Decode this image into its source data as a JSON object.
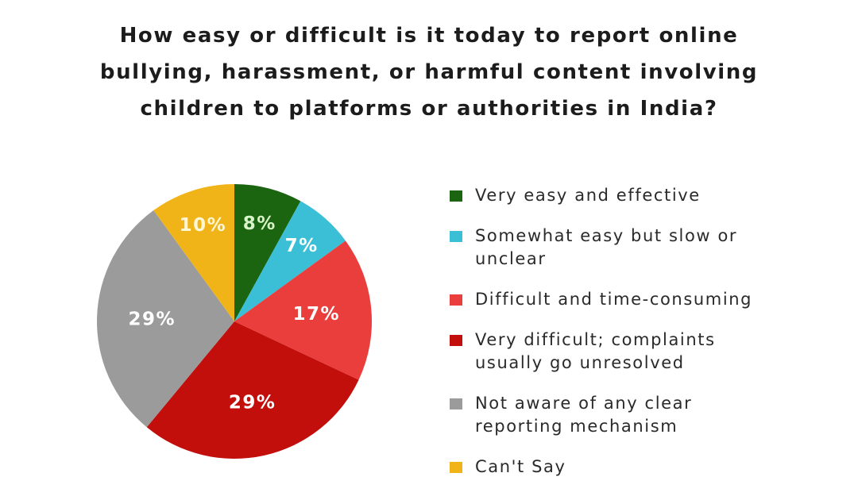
{
  "title": {
    "lines": [
      "How easy or difficult is it today to report online",
      "bullying, harassment, or harmful content involving",
      "children to platforms or authorities in India?"
    ]
  },
  "chart_data": {
    "type": "pie",
    "title": "How easy or difficult is it today to report online bullying, harassment, or harmful content involving children to platforms or authorities in India?",
    "categories": [
      "Very easy and effective",
      "Somewhat easy but slow or unclear",
      "Difficult and time-consuming",
      "Very difficult; complaints usually go unresolved",
      "Not aware of any clear reporting mechanism",
      "Can't Say"
    ],
    "values": [
      8,
      7,
      17,
      29,
      29,
      10
    ],
    "labels": [
      "8%",
      "7%",
      "17%",
      "29%",
      "29%",
      "10%"
    ],
    "colors": [
      "#1b6410",
      "#3bbfd6",
      "#ea3e3c",
      "#c20f0c",
      "#9b9b9b",
      "#f0b418"
    ],
    "legend_position": "right",
    "start_angle": "top, clockwise"
  },
  "legend": {
    "items": [
      {
        "label_lines": [
          "Very easy and effective"
        ],
        "color": "#1b6410"
      },
      {
        "label_lines": [
          "Somewhat easy but slow or",
          "unclear"
        ],
        "color": "#3bbfd6"
      },
      {
        "label_lines": [
          "Difficult and time-consuming"
        ],
        "color": "#ea3e3c"
      },
      {
        "label_lines": [
          "Very difficult; complaints",
          "usually go unresolved"
        ],
        "color": "#c20f0c"
      },
      {
        "label_lines": [
          "Not aware of any clear",
          "reporting mechanism"
        ],
        "color": "#9b9b9b"
      },
      {
        "label_lines": [
          "Can't Say"
        ],
        "color": "#f0b418"
      }
    ]
  }
}
